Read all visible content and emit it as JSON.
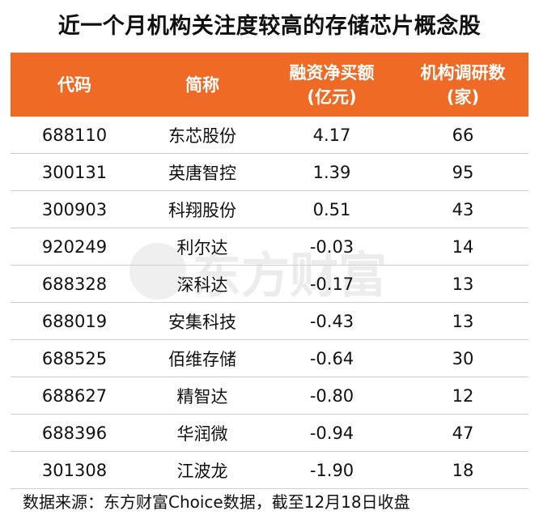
{
  "title": "近一个月机构关注度较高的存储芯片概念股",
  "headers": {
    "code": "代码",
    "name": "简称",
    "net_buy_line1": "融资净买额",
    "net_buy_line2": "(亿元)",
    "research_line1": "机构调研数",
    "research_line2": "(家)"
  },
  "rows": [
    {
      "code": "688110",
      "name": "东芯股份",
      "net_buy": "4.17",
      "research": "66"
    },
    {
      "code": "300131",
      "name": "英唐智控",
      "net_buy": "1.39",
      "research": "95"
    },
    {
      "code": "300903",
      "name": "科翔股份",
      "net_buy": "0.51",
      "research": "43"
    },
    {
      "code": "920249",
      "name": "利尔达",
      "net_buy": "-0.03",
      "research": "14"
    },
    {
      "code": "688328",
      "name": "深科达",
      "net_buy": "-0.17",
      "research": "13"
    },
    {
      "code": "688019",
      "name": "安集科技",
      "net_buy": "-0.43",
      "research": "13"
    },
    {
      "code": "688525",
      "name": "佰维存储",
      "net_buy": "-0.64",
      "research": "30"
    },
    {
      "code": "688627",
      "name": "精智达",
      "net_buy": "-0.80",
      "research": "12"
    },
    {
      "code": "688396",
      "name": "华润微",
      "net_buy": "-0.94",
      "research": "47"
    },
    {
      "code": "301308",
      "name": "江波龙",
      "net_buy": "-1.90",
      "research": "18"
    }
  ],
  "watermark": "东方财富",
  "footer": "数据来源：东方财富Choice数据，截至12月18日收盘",
  "colors": {
    "header_bg": "#ef6a25",
    "header_text": "#ffffff"
  }
}
